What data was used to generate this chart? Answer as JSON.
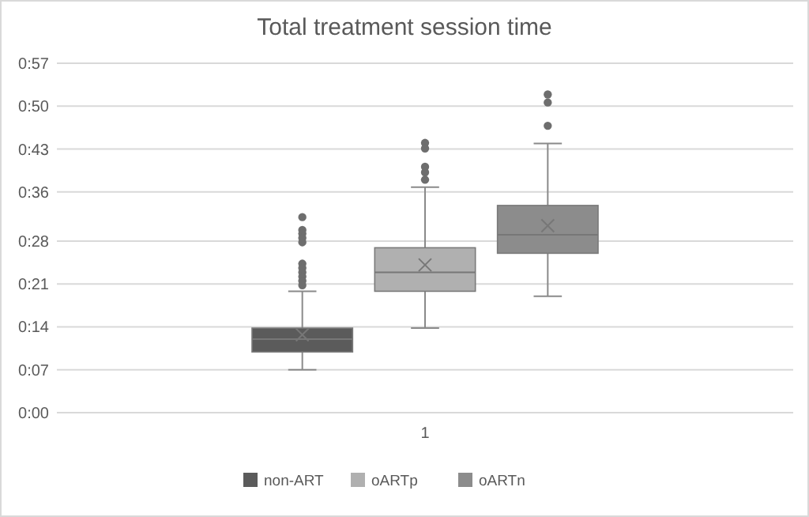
{
  "chart_data": {
    "type": "box",
    "title": "Total treatment session time",
    "categories": [
      "1"
    ],
    "series": [
      {
        "name": "non-ART",
        "color": "#5b5b5b",
        "boxes": [
          {
            "low": 7.0,
            "q1": 9.9,
            "median": 12.0,
            "q3": 13.8,
            "high": 19.8,
            "mean": 12.7,
            "outliers": [
              31.9,
              29.8,
              29.2,
              28.5,
              27.8,
              24.3,
              23.6,
              22.9,
              22.2,
              21.5,
              20.8
            ]
          }
        ]
      },
      {
        "name": "oARTp",
        "color": "#b0b0b0",
        "boxes": [
          {
            "low": 13.8,
            "q1": 19.8,
            "median": 22.9,
            "q3": 26.9,
            "high": 36.8,
            "mean": 24.1,
            "outliers": [
              44.0,
              43.1,
              40.1,
              39.2,
              38.0
            ]
          }
        ]
      },
      {
        "name": "oARTn",
        "color": "#8c8c8c",
        "boxes": [
          {
            "low": 19.0,
            "q1": 26.0,
            "median": 29.0,
            "q3": 33.8,
            "high": 43.9,
            "mean": 30.5,
            "outliers": [
              46.8,
              51.9,
              50.6
            ]
          }
        ]
      }
    ],
    "ylim": [
      0,
      57
    ],
    "yticks": [
      {
        "value": 0,
        "label": "0:00"
      },
      {
        "value": 7,
        "label": "0:07"
      },
      {
        "value": 14,
        "label": "0:14"
      },
      {
        "value": 21,
        "label": "0:21"
      },
      {
        "value": 28,
        "label": "0:28"
      },
      {
        "value": 36,
        "label": "0:36"
      },
      {
        "value": 43,
        "label": "0:43"
      },
      {
        "value": 50,
        "label": "0:50"
      },
      {
        "value": 57,
        "label": "0:57"
      }
    ],
    "grid": "y",
    "legend": "bottom",
    "marker": "circle"
  }
}
